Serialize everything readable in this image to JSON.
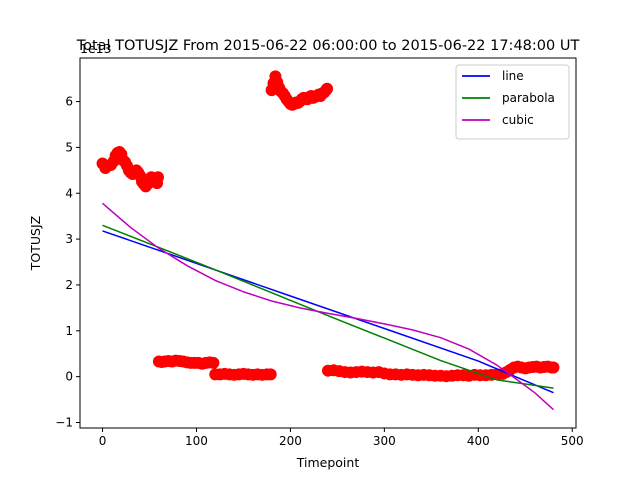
{
  "chart_data": {
    "type": "scatter",
    "title": "Total TOTUSJZ From 2015-06-22 06:00:00 to 2015-06-22 17:48:00 UT",
    "xlabel": "Timepoint",
    "ylabel": "TOTUSJZ",
    "offset_label": "1e13",
    "xlim": [
      -24,
      504
    ],
    "ylim": [
      -1.12,
      6.95
    ],
    "xticks": [
      0,
      100,
      200,
      300,
      400,
      500
    ],
    "yticks": [
      -1,
      0,
      1,
      2,
      3,
      4,
      5,
      6
    ],
    "grid": false,
    "legend_position": "top-right",
    "point_color": "#ff0000",
    "scatter": [
      {
        "x": 0,
        "y": 4.65
      },
      {
        "x": 3,
        "y": 4.55
      },
      {
        "x": 6,
        "y": 4.6
      },
      {
        "x": 9,
        "y": 4.62
      },
      {
        "x": 12,
        "y": 4.7
      },
      {
        "x": 14,
        "y": 4.82
      },
      {
        "x": 16,
        "y": 4.88
      },
      {
        "x": 18,
        "y": 4.9
      },
      {
        "x": 20,
        "y": 4.85
      },
      {
        "x": 22,
        "y": 4.72
      },
      {
        "x": 24,
        "y": 4.68
      },
      {
        "x": 26,
        "y": 4.6
      },
      {
        "x": 28,
        "y": 4.5
      },
      {
        "x": 30,
        "y": 4.45
      },
      {
        "x": 32,
        "y": 4.42
      },
      {
        "x": 34,
        "y": 4.48
      },
      {
        "x": 36,
        "y": 4.5
      },
      {
        "x": 38,
        "y": 4.45
      },
      {
        "x": 40,
        "y": 4.38
      },
      {
        "x": 42,
        "y": 4.25
      },
      {
        "x": 44,
        "y": 4.2
      },
      {
        "x": 46,
        "y": 4.15
      },
      {
        "x": 48,
        "y": 4.2
      },
      {
        "x": 50,
        "y": 4.25
      },
      {
        "x": 52,
        "y": 4.35
      },
      {
        "x": 54,
        "y": 4.3
      },
      {
        "x": 56,
        "y": 4.28
      },
      {
        "x": 58,
        "y": 4.22
      },
      {
        "x": 59,
        "y": 4.35
      },
      {
        "x": 60,
        "y": 0.33
      },
      {
        "x": 63,
        "y": 0.32
      },
      {
        "x": 66,
        "y": 0.33
      },
      {
        "x": 70,
        "y": 0.34
      },
      {
        "x": 74,
        "y": 0.33
      },
      {
        "x": 78,
        "y": 0.35
      },
      {
        "x": 82,
        "y": 0.34
      },
      {
        "x": 86,
        "y": 0.33
      },
      {
        "x": 90,
        "y": 0.31
      },
      {
        "x": 94,
        "y": 0.3
      },
      {
        "x": 98,
        "y": 0.3
      },
      {
        "x": 102,
        "y": 0.3
      },
      {
        "x": 106,
        "y": 0.28
      },
      {
        "x": 110,
        "y": 0.3
      },
      {
        "x": 114,
        "y": 0.31
      },
      {
        "x": 118,
        "y": 0.3
      },
      {
        "x": 120,
        "y": 0.05
      },
      {
        "x": 125,
        "y": 0.05
      },
      {
        "x": 130,
        "y": 0.06
      },
      {
        "x": 135,
        "y": 0.05
      },
      {
        "x": 140,
        "y": 0.04
      },
      {
        "x": 145,
        "y": 0.05
      },
      {
        "x": 150,
        "y": 0.06
      },
      {
        "x": 155,
        "y": 0.05
      },
      {
        "x": 160,
        "y": 0.04
      },
      {
        "x": 165,
        "y": 0.05
      },
      {
        "x": 170,
        "y": 0.04
      },
      {
        "x": 175,
        "y": 0.05
      },
      {
        "x": 179,
        "y": 0.05
      },
      {
        "x": 180,
        "y": 6.25
      },
      {
        "x": 182,
        "y": 6.4
      },
      {
        "x": 184,
        "y": 6.55
      },
      {
        "x": 186,
        "y": 6.42
      },
      {
        "x": 188,
        "y": 6.3
      },
      {
        "x": 190,
        "y": 6.22
      },
      {
        "x": 192,
        "y": 6.18
      },
      {
        "x": 194,
        "y": 6.12
      },
      {
        "x": 196,
        "y": 6.05
      },
      {
        "x": 198,
        "y": 6.0
      },
      {
        "x": 200,
        "y": 5.95
      },
      {
        "x": 202,
        "y": 5.93
      },
      {
        "x": 204,
        "y": 5.95
      },
      {
        "x": 206,
        "y": 5.98
      },
      {
        "x": 208,
        "y": 5.97
      },
      {
        "x": 210,
        "y": 6.0
      },
      {
        "x": 212,
        "y": 6.05
      },
      {
        "x": 214,
        "y": 6.08
      },
      {
        "x": 216,
        "y": 6.06
      },
      {
        "x": 218,
        "y": 6.05
      },
      {
        "x": 220,
        "y": 6.1
      },
      {
        "x": 222,
        "y": 6.12
      },
      {
        "x": 224,
        "y": 6.08
      },
      {
        "x": 226,
        "y": 6.1
      },
      {
        "x": 228,
        "y": 6.12
      },
      {
        "x": 230,
        "y": 6.15
      },
      {
        "x": 232,
        "y": 6.12
      },
      {
        "x": 234,
        "y": 6.18
      },
      {
        "x": 236,
        "y": 6.2
      },
      {
        "x": 238,
        "y": 6.25
      },
      {
        "x": 239,
        "y": 6.28
      },
      {
        "x": 240,
        "y": 0.13
      },
      {
        "x": 246,
        "y": 0.14
      },
      {
        "x": 252,
        "y": 0.12
      },
      {
        "x": 258,
        "y": 0.1
      },
      {
        "x": 264,
        "y": 0.09
      },
      {
        "x": 270,
        "y": 0.1
      },
      {
        "x": 276,
        "y": 0.11
      },
      {
        "x": 282,
        "y": 0.1
      },
      {
        "x": 288,
        "y": 0.09
      },
      {
        "x": 294,
        "y": 0.1
      },
      {
        "x": 300,
        "y": 0.07
      },
      {
        "x": 306,
        "y": 0.05
      },
      {
        "x": 312,
        "y": 0.05
      },
      {
        "x": 318,
        "y": 0.04
      },
      {
        "x": 324,
        "y": 0.05
      },
      {
        "x": 330,
        "y": 0.04
      },
      {
        "x": 336,
        "y": 0.03
      },
      {
        "x": 342,
        "y": 0.04
      },
      {
        "x": 348,
        "y": 0.03
      },
      {
        "x": 354,
        "y": 0.02
      },
      {
        "x": 360,
        "y": 0.02
      },
      {
        "x": 366,
        "y": 0.01
      },
      {
        "x": 372,
        "y": 0.02
      },
      {
        "x": 378,
        "y": 0.03
      },
      {
        "x": 384,
        "y": 0.03
      },
      {
        "x": 390,
        "y": 0.02
      },
      {
        "x": 396,
        "y": 0.04
      },
      {
        "x": 402,
        "y": 0.03
      },
      {
        "x": 408,
        "y": 0.03
      },
      {
        "x": 414,
        "y": 0.04
      },
      {
        "x": 420,
        "y": 0.05
      },
      {
        "x": 426,
        "y": 0.06
      },
      {
        "x": 430,
        "y": 0.1
      },
      {
        "x": 434,
        "y": 0.15
      },
      {
        "x": 438,
        "y": 0.2
      },
      {
        "x": 442,
        "y": 0.22
      },
      {
        "x": 446,
        "y": 0.2
      },
      {
        "x": 450,
        "y": 0.18
      },
      {
        "x": 454,
        "y": 0.2
      },
      {
        "x": 458,
        "y": 0.21
      },
      {
        "x": 462,
        "y": 0.22
      },
      {
        "x": 466,
        "y": 0.2
      },
      {
        "x": 470,
        "y": 0.21
      },
      {
        "x": 474,
        "y": 0.22
      },
      {
        "x": 478,
        "y": 0.2
      },
      {
        "x": 480,
        "y": 0.2
      }
    ],
    "series": [
      {
        "name": "line",
        "color": "#0000ff",
        "x": [
          0,
          100,
          200,
          300,
          400,
          480
        ],
        "values": [
          3.18,
          2.47,
          1.76,
          1.05,
          0.34,
          -0.35
        ]
      },
      {
        "name": "parabola",
        "color": "#008000",
        "x": [
          0,
          60,
          120,
          180,
          240,
          300,
          360,
          420,
          480
        ],
        "values": [
          3.3,
          2.82,
          2.33,
          1.83,
          1.33,
          0.84,
          0.35,
          -0.07,
          -0.25
        ]
      },
      {
        "name": "cubic",
        "color": "#bf00bf",
        "x": [
          0,
          30,
          60,
          90,
          120,
          150,
          180,
          210,
          240,
          270,
          300,
          330,
          360,
          390,
          420,
          440,
          460,
          480
        ],
        "values": [
          3.78,
          3.25,
          2.8,
          2.42,
          2.1,
          1.85,
          1.65,
          1.5,
          1.38,
          1.27,
          1.15,
          1.02,
          0.85,
          0.6,
          0.25,
          -0.05,
          -0.35,
          -0.72
        ]
      }
    ]
  }
}
